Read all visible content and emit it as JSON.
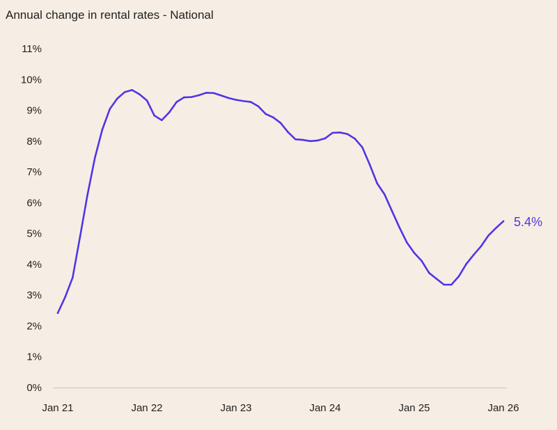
{
  "chart_data": {
    "type": "line",
    "title": "Annual change in rental rates - National",
    "xlabel": "",
    "ylabel": "",
    "ylim": [
      0,
      11
    ],
    "y_ticks": [
      "0%",
      "1%",
      "2%",
      "3%",
      "4%",
      "5%",
      "6%",
      "7%",
      "8%",
      "9%",
      "10%",
      "11%"
    ],
    "x_ticks": [
      {
        "label": "Jan 21",
        "date": "2021-01"
      },
      {
        "label": "Jan 22",
        "date": "2022-01"
      },
      {
        "label": "Jan 23",
        "date": "2023-01"
      },
      {
        "label": "Jan 24",
        "date": "2024-01"
      },
      {
        "label": "Jan 25",
        "date": "2025-01"
      },
      {
        "label": "Jan 26",
        "date": "2026-01"
      }
    ],
    "grid": false,
    "line_color": "#4f35e6",
    "end_label": "5.4%",
    "series": [
      {
        "start": "2021-01",
        "frequency": "monthly",
        "values": [
          2.42,
          2.94,
          3.57,
          4.9,
          6.26,
          7.46,
          8.38,
          9.04,
          9.38,
          9.59,
          9.66,
          9.52,
          9.32,
          8.83,
          8.68,
          8.93,
          9.27,
          9.42,
          9.43,
          9.49,
          9.57,
          9.56,
          9.48,
          9.4,
          9.34,
          9.3,
          9.27,
          9.13,
          8.88,
          8.77,
          8.59,
          8.29,
          8.06,
          8.04,
          8.0,
          8.02,
          8.09,
          8.27,
          8.28,
          8.23,
          8.08,
          7.8,
          7.24,
          6.63,
          6.27,
          5.73,
          5.2,
          4.71,
          4.37,
          4.11,
          3.72,
          3.53,
          3.34,
          3.34,
          3.61,
          4.01,
          4.31,
          4.59,
          4.94,
          5.18,
          5.4
        ]
      }
    ]
  }
}
